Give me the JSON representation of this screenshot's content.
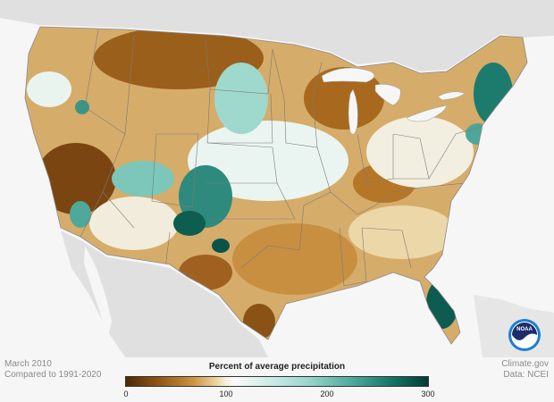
{
  "footer": {
    "period": "March 2010",
    "baseline": "Compared to 1991-2020",
    "source": "Climate.gov",
    "data_credit": "Data: NCEI"
  },
  "legend": {
    "title": "Percent of average precipitation",
    "ticks": [
      "0",
      "100",
      "200",
      "300"
    ],
    "tick_values": [
      0,
      100,
      200,
      300
    ],
    "range": [
      0,
      300
    ],
    "colors": {
      "dry_extreme": "#4d2a05",
      "dry": "#c9913f",
      "normal": "#f7f0dd",
      "wet": "#9ad7cc",
      "wet_extreme": "#003d33"
    }
  },
  "logo": {
    "text": "NOAA",
    "icon": "noaa-logo-icon",
    "colors": {
      "outer": "#1a7fd6",
      "inner": "#1b2d6b"
    }
  },
  "map": {
    "region": "contiguous-united-states",
    "land_color": "#e0e0e0",
    "water_color": "#f6f6f6"
  }
}
